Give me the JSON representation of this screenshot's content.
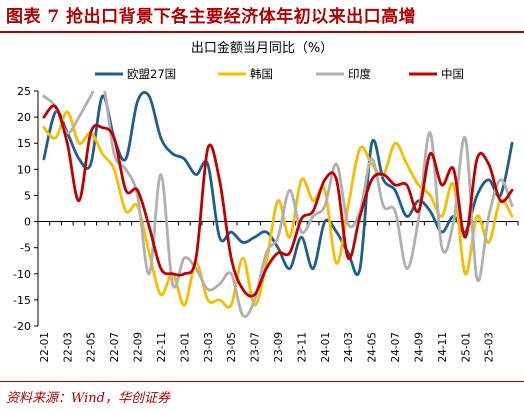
{
  "figure": {
    "title": "图表 7   抢出口背景下各主要经济体年初以来出口高增",
    "source": "资料来源：Wind，华创证券",
    "title_color": "#b00000"
  },
  "chart_data": {
    "type": "line",
    "title": "出口金额当月同比（%）",
    "xlabel": "",
    "ylabel": "",
    "ylim": [
      -20,
      25
    ],
    "yticks": [
      25,
      20,
      15,
      10,
      5,
      0,
      -5,
      -10,
      -15,
      -20
    ],
    "grid": false,
    "legend_position": "top",
    "x": [
      "22-01",
      "22-02",
      "22-03",
      "22-04",
      "22-05",
      "22-06",
      "22-07",
      "22-08",
      "22-09",
      "22-10",
      "22-11",
      "22-12",
      "23-01",
      "23-02",
      "23-03",
      "23-04",
      "23-05",
      "23-06",
      "23-07",
      "23-08",
      "23-09",
      "23-10",
      "23-11",
      "23-12",
      "24-01",
      "24-02",
      "24-03",
      "24-04",
      "24-05",
      "24-06",
      "24-07",
      "24-08",
      "24-09",
      "24-10",
      "24-11",
      "24-12",
      "25-01",
      "25-02",
      "25-03",
      "25-04",
      "25-05"
    ],
    "x_tick_labels": [
      "22-01",
      "22-03",
      "22-05",
      "22-07",
      "22-09",
      "22-11",
      "23-01",
      "23-03",
      "23-05",
      "23-07",
      "23-09",
      "23-11",
      "24-01",
      "24-03",
      "24-05",
      "24-07",
      "24-09",
      "24-11",
      "25-01",
      "25-03"
    ],
    "series": [
      {
        "name": "欧盟27国",
        "color": "#1f5f8b",
        "values": [
          12,
          21,
          17,
          12,
          11,
          24,
          16,
          12,
          23,
          24,
          16,
          13,
          12,
          9,
          11,
          -3,
          -2,
          -4,
          -3,
          -2,
          -5,
          -9,
          -3,
          -9,
          0,
          -2,
          -6,
          -9,
          15,
          8,
          6,
          1,
          4,
          2,
          -2,
          1,
          -2,
          5,
          8,
          5,
          15
        ]
      },
      {
        "name": "韩国",
        "color": "#f7bd00",
        "values": [
          18,
          16,
          21,
          15,
          17,
          13,
          10,
          2,
          3,
          -6,
          -14,
          -10,
          -16,
          -8,
          -15,
          -15,
          -16,
          -7,
          -16,
          -8,
          4,
          -3,
          8,
          4,
          6,
          -8,
          3,
          14,
          11,
          9,
          15,
          11,
          7,
          5,
          1,
          7,
          -10,
          1,
          -4,
          4,
          1
        ]
      },
      {
        "name": "印度",
        "color": "#b0b0b0",
        "values": [
          24,
          22,
          17,
          20,
          24,
          27,
          13,
          10,
          5,
          -10,
          9,
          -12,
          -7,
          -9,
          -13,
          -12,
          -10,
          -18,
          -15,
          -6,
          -3,
          6,
          -2,
          1,
          3,
          11,
          -0.5,
          2,
          12,
          3,
          2,
          -9,
          0.5,
          17,
          -5,
          0,
          16,
          -11,
          1,
          8,
          3
        ]
      },
      {
        "name": "中国",
        "color": "#c00000",
        "values": [
          20,
          22,
          15,
          4,
          17,
          18,
          16,
          6,
          6,
          -1,
          -9,
          -10,
          -10,
          -7,
          14,
          8,
          -7,
          -13,
          -14,
          -9,
          -6,
          -6,
          0.5,
          2,
          8,
          8,
          -7,
          1,
          8,
          9,
          7,
          7,
          2,
          13,
          7,
          10,
          -3,
          12,
          11,
          4,
          6
        ]
      }
    ]
  }
}
